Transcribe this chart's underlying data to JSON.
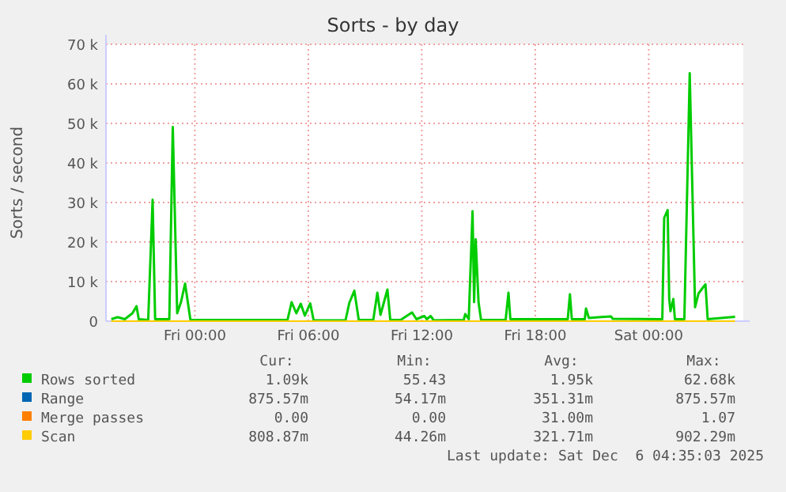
{
  "chart_data": {
    "type": "line",
    "title": "Sorts - by day",
    "ylabel": "Sorts / second",
    "xlim": [
      "2025-12-04T19:18",
      "2025-12-06T05:00"
    ],
    "ylim": [
      0,
      70000
    ],
    "xticks": [
      {
        "value": "2025-12-05T00:00",
        "label": "Fri 00:00"
      },
      {
        "value": "2025-12-05T06:00",
        "label": "Fri 06:00"
      },
      {
        "value": "2025-12-05T12:00",
        "label": "Fri 12:00"
      },
      {
        "value": "2025-12-05T18:00",
        "label": "Fri 18:00"
      },
      {
        "value": "2025-12-06T00:00",
        "label": "Sat 00:00"
      }
    ],
    "yticks": [
      0,
      {
        "value": 10000,
        "label": "10 k"
      },
      {
        "value": 20000,
        "label": "20 k"
      },
      {
        "value": 30000,
        "label": "30 k"
      },
      {
        "value": 40000,
        "label": "40 k"
      },
      {
        "value": 50000,
        "label": "50 k"
      },
      {
        "value": 60000,
        "label": "60 k"
      },
      {
        "value": 70000,
        "label": "70 k"
      }
    ],
    "grid": true,
    "legend": "bottom",
    "marker": "none",
    "line_style": "solid",
    "series": [
      {
        "name": "Rows sorted",
        "color": "#00cc00",
        "x": [
          "2025-12-04T19:35",
          "2025-12-04T19:55",
          "2025-12-04T20:18",
          "2025-12-04T20:42",
          "2025-12-04T20:55",
          "2025-12-04T21:02",
          "2025-12-04T21:32",
          "2025-12-04T21:46",
          "2025-12-04T21:54",
          "2025-12-04T22:39",
          "2025-12-04T22:50",
          "2025-12-04T23:04",
          "2025-12-04T23:16",
          "2025-12-04T23:29",
          "2025-12-04T23:46",
          "2025-12-05T01:26",
          "2025-12-05T04:54",
          "2025-12-05T05:07",
          "2025-12-05T05:22",
          "2025-12-05T05:36",
          "2025-12-05T05:49",
          "2025-12-05T06:06",
          "2025-12-05T06:17",
          "2025-12-05T07:58",
          "2025-12-05T08:10",
          "2025-12-05T08:26",
          "2025-12-05T08:40",
          "2025-12-05T09:26",
          "2025-12-05T09:39",
          "2025-12-05T09:49",
          "2025-12-05T10:11",
          "2025-12-05T10:20",
          "2025-12-05T10:53",
          "2025-12-05T11:29",
          "2025-12-05T11:43",
          "2025-12-05T12:08",
          "2025-12-05T12:16",
          "2025-12-05T12:28",
          "2025-12-05T12:38",
          "2025-12-05T14:13",
          "2025-12-05T14:18",
          "2025-12-05T14:29",
          "2025-12-05T14:41",
          "2025-12-05T14:46",
          "2025-12-05T14:51",
          "2025-12-05T15:00",
          "2025-12-05T15:08",
          "2025-12-05T16:26",
          "2025-12-05T16:35",
          "2025-12-05T16:41",
          "2025-12-05T19:43",
          "2025-12-05T19:50",
          "2025-12-05T19:56",
          "2025-12-05T20:37",
          "2025-12-05T20:41",
          "2025-12-05T20:50",
          "2025-12-05T22:00",
          "2025-12-05T22:06",
          "2025-12-06T00:43",
          "2025-12-06T00:49",
          "2025-12-06T01:00",
          "2025-12-06T01:05",
          "2025-12-06T01:09",
          "2025-12-06T01:18",
          "2025-12-06T01:23",
          "2025-12-06T01:53",
          "2025-12-06T02:10",
          "2025-12-06T02:27",
          "2025-12-06T02:38",
          "2025-12-06T02:52",
          "2025-12-06T03:00",
          "2025-12-06T03:07",
          "2025-12-06T04:34"
        ],
        "values": [
          500,
          1000,
          500,
          2000,
          3800,
          500,
          300,
          30700,
          500,
          500,
          49100,
          2000,
          4800,
          9500,
          300,
          300,
          300,
          4800,
          2000,
          4400,
          1400,
          4500,
          200,
          200,
          4600,
          7700,
          300,
          300,
          7200,
          1600,
          8000,
          300,
          300,
          2200,
          500,
          1300,
          500,
          1300,
          200,
          300,
          1800,
          500,
          27800,
          4800,
          20700,
          4800,
          300,
          300,
          7200,
          500,
          500,
          6800,
          500,
          500,
          3200,
          800,
          1200,
          600,
          500,
          26100,
          28100,
          5600,
          2500,
          5600,
          500,
          500,
          62700,
          3500,
          7000,
          8500,
          9300,
          500,
          1100
        ]
      },
      {
        "name": "Range",
        "color": "#0066b3"
      },
      {
        "name": "Merge passes",
        "color": "#ff8000"
      },
      {
        "name": "Scan",
        "color": "#ffcc00",
        "x": [
          "2025-12-04T19:35",
          "2025-12-06T04:34"
        ],
        "values": [
          0,
          0
        ]
      }
    ],
    "annotations": [
      "Cur:",
      "Min:",
      "Avg:",
      "Max:",
      "1.09k",
      "55.43",
      "1.95k",
      "62.68k",
      "875.57m",
      "54.17m",
      "351.31m",
      "875.57m",
      "0.00",
      "0.00",
      "31.00m",
      "1.07",
      "808.87m",
      "44.26m",
      "321.71m",
      "902.29m",
      "Last update: Sat Dec  6 04:35:03 2025"
    ]
  }
}
